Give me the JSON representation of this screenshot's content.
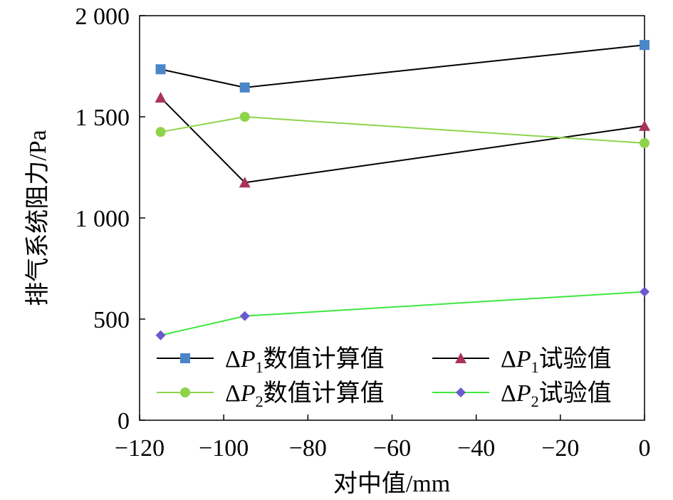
{
  "chart_data": {
    "type": "line",
    "xlabel": "对中值/mm",
    "ylabel": "排气系统阻力/Pa",
    "xlim": [
      -120,
      0
    ],
    "ylim": [
      0,
      2000
    ],
    "xticks": [
      {
        "value": -120,
        "label": "−120"
      },
      {
        "value": -100,
        "label": "−100"
      },
      {
        "value": -80,
        "label": "−80"
      },
      {
        "value": -60,
        "label": "−60"
      },
      {
        "value": -40,
        "label": "−40"
      },
      {
        "value": -20,
        "label": "−20"
      },
      {
        "value": 0,
        "label": "0"
      }
    ],
    "yticks": [
      {
        "value": 0,
        "label": "0"
      },
      {
        "value": 500,
        "label": "500"
      },
      {
        "value": 1000,
        "label": "1 000"
      },
      {
        "value": 1500,
        "label": "1 500"
      },
      {
        "value": 2000,
        "label": "2 000"
      }
    ],
    "series": [
      {
        "name": "ΔP1数值计算值",
        "sym": "Δ",
        "var": "P",
        "sub": "1",
        "suffix": "数值计算值",
        "line_color": "#000000",
        "marker": "square",
        "marker_color": "#4a86c8",
        "x": [
          -115,
          -95,
          0
        ],
        "y": [
          1735,
          1645,
          1855
        ]
      },
      {
        "name": "ΔP1试验值",
        "sym": "Δ",
        "var": "P",
        "sub": "1",
        "suffix": "试验值",
        "line_color": "#000000",
        "marker": "triangle",
        "marker_color": "#a8345a",
        "x": [
          -115,
          -95,
          0
        ],
        "y": [
          1595,
          1175,
          1455
        ]
      },
      {
        "name": "ΔP2数值计算值",
        "sym": "Δ",
        "var": "P",
        "sub": "2",
        "suffix": "数值计算值",
        "line_color": "#8ed44a",
        "marker": "circle",
        "marker_color": "#8ed44a",
        "x": [
          -115,
          -95,
          0
        ],
        "y": [
          1425,
          1500,
          1370
        ]
      },
      {
        "name": "ΔP2试验值",
        "sym": "Δ",
        "var": "P",
        "sub": "2",
        "suffix": "试验值",
        "line_color": "#3ee83e",
        "marker": "diamond",
        "marker_color": "#6a5acd",
        "x": [
          -115,
          -95,
          0
        ],
        "y": [
          420,
          515,
          635
        ]
      }
    ],
    "legend_position": "bottom"
  }
}
